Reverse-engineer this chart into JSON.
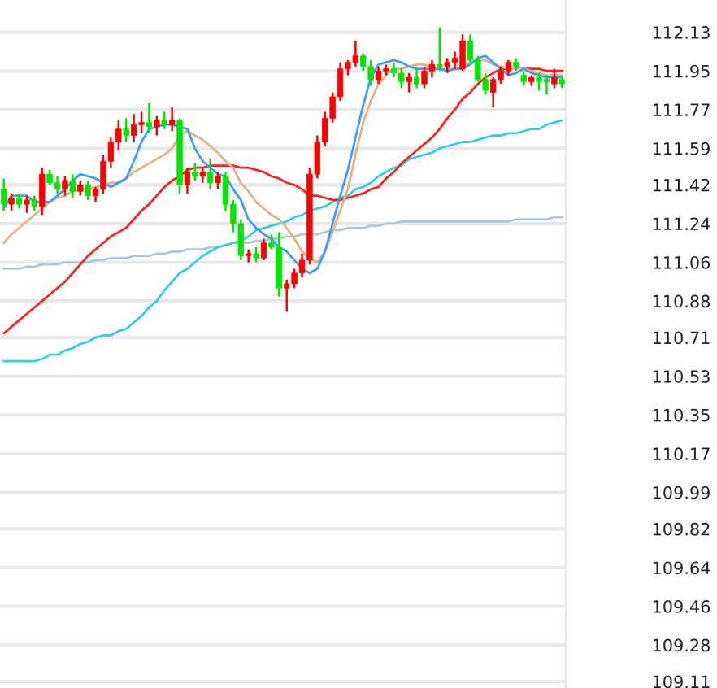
{
  "chart_data": {
    "type": "candlestick",
    "categories": [
      null,
      null,
      null,
      null,
      null,
      null,
      null,
      null,
      null,
      null,
      null,
      null,
      null,
      null,
      null,
      null,
      null,
      null,
      null,
      null,
      null,
      null,
      null,
      null,
      null,
      null,
      null,
      null,
      null,
      null,
      null,
      null,
      null,
      null,
      null,
      null,
      null,
      null,
      null,
      null,
      null,
      null,
      null,
      null,
      null,
      null,
      null,
      null,
      null,
      null,
      null,
      null,
      null,
      null,
      null,
      null,
      null,
      null,
      null,
      null,
      null,
      null,
      null,
      null,
      null,
      null,
      null,
      null,
      null,
      null,
      null,
      null,
      null,
      null
    ],
    "ohlc": [
      [
        111.4,
        111.45,
        111.3,
        111.33
      ],
      [
        111.33,
        111.38,
        111.3,
        111.36
      ],
      [
        111.36,
        111.38,
        111.31,
        111.33
      ],
      [
        111.33,
        111.37,
        111.29,
        111.35
      ],
      [
        111.35,
        111.37,
        111.3,
        111.32
      ],
      [
        111.32,
        111.5,
        111.28,
        111.47
      ],
      [
        111.47,
        111.49,
        111.42,
        111.43
      ],
      [
        111.43,
        111.46,
        111.38,
        111.4
      ],
      [
        111.4,
        111.46,
        111.37,
        111.44
      ],
      [
        111.44,
        111.47,
        111.36,
        111.39
      ],
      [
        111.39,
        111.44,
        111.37,
        111.42
      ],
      [
        111.42,
        111.44,
        111.35,
        111.37
      ],
      [
        111.37,
        111.41,
        111.34,
        111.4
      ],
      [
        111.4,
        111.56,
        111.38,
        111.53
      ],
      [
        111.53,
        111.64,
        111.5,
        111.62
      ],
      [
        111.62,
        111.72,
        111.58,
        111.68
      ],
      [
        111.68,
        111.73,
        111.62,
        111.65
      ],
      [
        111.65,
        111.75,
        111.62,
        111.7
      ],
      [
        111.7,
        111.76,
        111.66,
        111.71
      ],
      [
        111.71,
        111.8,
        111.66,
        111.69
      ],
      [
        111.69,
        111.74,
        111.65,
        111.72
      ],
      [
        111.72,
        111.76,
        111.68,
        111.7
      ],
      [
        111.7,
        111.78,
        111.67,
        111.72
      ],
      [
        111.72,
        111.73,
        111.38,
        111.42
      ],
      [
        111.42,
        111.5,
        111.38,
        111.48
      ],
      [
        111.48,
        111.52,
        111.44,
        111.46
      ],
      [
        111.46,
        111.5,
        111.43,
        111.48
      ],
      [
        111.48,
        111.54,
        111.4,
        111.43
      ],
      [
        111.43,
        111.48,
        111.4,
        111.46
      ],
      [
        111.46,
        111.48,
        111.3,
        111.33
      ],
      [
        111.33,
        111.35,
        111.2,
        111.24
      ],
      [
        111.24,
        111.26,
        111.07,
        111.09
      ],
      [
        111.09,
        111.12,
        111.06,
        111.1
      ],
      [
        111.1,
        111.13,
        111.06,
        111.08
      ],
      [
        111.08,
        111.17,
        111.07,
        111.15
      ],
      [
        111.15,
        111.19,
        111.12,
        111.13
      ],
      [
        111.13,
        111.2,
        110.9,
        110.94
      ],
      [
        110.94,
        110.98,
        110.83,
        110.96
      ],
      [
        110.96,
        111.03,
        110.94,
        111.01
      ],
      [
        111.01,
        111.1,
        110.99,
        111.07
      ],
      [
        111.07,
        111.5,
        111.05,
        111.47
      ],
      [
        111.47,
        111.65,
        111.45,
        111.62
      ],
      [
        111.62,
        111.76,
        111.6,
        111.73
      ],
      [
        111.73,
        111.85,
        111.71,
        111.83
      ],
      [
        111.83,
        111.99,
        111.81,
        111.96
      ],
      [
        111.96,
        112.0,
        111.93,
        111.99
      ],
      [
        111.99,
        112.09,
        111.97,
        112.02
      ],
      [
        112.02,
        112.03,
        111.95,
        111.97
      ],
      [
        111.97,
        112.0,
        111.88,
        111.91
      ],
      [
        111.91,
        111.97,
        111.89,
        111.95
      ],
      [
        111.95,
        111.98,
        111.93,
        111.96
      ],
      [
        111.96,
        111.99,
        111.92,
        111.94
      ],
      [
        111.94,
        111.96,
        111.87,
        111.9
      ],
      [
        111.9,
        111.94,
        111.85,
        111.92
      ],
      [
        111.92,
        111.96,
        111.87,
        111.89
      ],
      [
        111.89,
        111.97,
        111.87,
        111.95
      ],
      [
        111.95,
        112.0,
        111.92,
        111.98
      ],
      [
        111.98,
        112.15,
        111.95,
        111.97
      ],
      [
        111.97,
        112.01,
        111.94,
        111.99
      ],
      [
        111.99,
        112.04,
        111.96,
        112.01
      ],
      [
        111.96,
        112.12,
        111.95,
        112.09
      ],
      [
        112.09,
        112.12,
        111.99,
        112.0
      ],
      [
        112.0,
        112.02,
        111.9,
        111.91
      ],
      [
        111.91,
        111.94,
        111.84,
        111.86
      ],
      [
        111.85,
        111.92,
        111.78,
        111.91
      ],
      [
        111.91,
        111.97,
        111.89,
        111.95
      ],
      [
        111.95,
        112.0,
        111.93,
        111.99
      ],
      [
        111.99,
        112.01,
        111.95,
        111.97
      ],
      [
        111.93,
        111.95,
        111.88,
        111.9
      ],
      [
        111.9,
        111.93,
        111.88,
        111.92
      ],
      [
        111.92,
        111.94,
        111.86,
        111.9
      ],
      [
        111.91,
        111.93,
        111.84,
        111.9
      ],
      [
        111.89,
        111.96,
        111.87,
        111.92
      ],
      [
        111.91,
        111.92,
        111.87,
        111.89
      ]
    ],
    "colors": [
      "#00e600",
      "#ff0000",
      "#00e600",
      "#ff0000",
      "#00e600",
      "#ff0000",
      "#00e600",
      "#00e600",
      "#ff0000",
      "#00e600",
      "#ff0000",
      "#00e600",
      "#ff0000",
      "#ff0000",
      "#ff0000",
      "#ff0000",
      "#00e600",
      "#ff0000",
      "#ff0000",
      "#00e600",
      "#ff0000",
      "#00e600",
      "#ff0000",
      "#00e600",
      "#ff0000",
      "#00e600",
      "#ff0000",
      "#00e600",
      "#ff0000",
      "#00e600",
      "#00e600",
      "#00e600",
      "#ff0000",
      "#00e600",
      "#ff0000",
      "#00e600",
      "#00e600",
      "#ff0000",
      "#ff0000",
      "#ff0000",
      "#ff0000",
      "#ff0000",
      "#ff0000",
      "#ff0000",
      "#ff0000",
      "#ff0000",
      "#ff0000",
      "#00e600",
      "#00e600",
      "#ff0000",
      "#ff0000",
      "#00e600",
      "#00e600",
      "#ff0000",
      "#00e600",
      "#ff0000",
      "#ff0000",
      "#00e600",
      "#ff0000",
      "#ff0000",
      "#ff0000",
      "#00e600",
      "#00e600",
      "#00e600",
      "#ff0000",
      "#ff0000",
      "#ff0000",
      "#00e600",
      "#00e600",
      "#ff0000",
      "#00e600",
      "#00e600",
      "#ff0000",
      "#00e600"
    ],
    "series": [
      {
        "type": "line",
        "color": "#a8c8e0",
        "values": [
          111.03,
          111.03,
          111.03,
          111.04,
          111.04,
          111.05,
          111.05,
          111.05,
          111.06,
          111.06,
          111.06,
          111.06,
          111.07,
          111.07,
          111.08,
          111.08,
          111.08,
          111.09,
          111.09,
          111.09,
          111.1,
          111.1,
          111.11,
          111.11,
          111.12,
          111.12,
          111.12,
          111.13,
          111.13,
          111.14,
          111.15,
          111.15,
          111.15,
          111.16,
          111.16,
          111.17,
          111.17,
          111.18,
          111.18,
          111.19,
          111.19,
          111.19,
          111.2,
          111.21,
          111.21,
          111.22,
          111.22,
          111.22,
          111.23,
          111.23,
          111.24,
          111.24,
          111.25,
          111.25,
          111.25,
          111.25,
          111.25,
          111.25,
          111.25,
          111.25,
          111.25,
          111.25,
          111.25,
          111.25,
          111.25,
          111.25,
          111.25,
          111.26,
          111.26,
          111.26,
          111.26,
          111.26,
          111.27,
          111.27
        ]
      },
      {
        "type": "line",
        "color": "#30d0e0",
        "values": [
          110.6,
          110.6,
          110.6,
          110.6,
          110.6,
          110.61,
          110.63,
          110.63,
          110.65,
          110.66,
          110.68,
          110.69,
          110.71,
          110.72,
          110.72,
          110.74,
          110.75,
          110.78,
          110.81,
          110.85,
          110.88,
          110.93,
          110.97,
          111.01,
          111.03,
          111.06,
          111.09,
          111.11,
          111.13,
          111.14,
          111.15,
          111.16,
          111.18,
          111.21,
          111.22,
          111.23,
          111.24,
          111.25,
          111.27,
          111.28,
          111.3,
          111.31,
          111.32,
          111.34,
          111.36,
          111.37,
          111.4,
          111.41,
          111.43,
          111.46,
          111.48,
          111.5,
          111.51,
          111.54,
          111.55,
          111.56,
          111.57,
          111.59,
          111.6,
          111.61,
          111.62,
          111.62,
          111.63,
          111.64,
          111.65,
          111.65,
          111.66,
          111.66,
          111.67,
          111.68,
          111.68,
          111.7,
          111.71,
          111.72
        ]
      },
      {
        "type": "line",
        "color": "#ff2020",
        "values": [
          110.73,
          110.76,
          110.79,
          110.82,
          110.85,
          110.88,
          110.91,
          110.94,
          110.97,
          111.01,
          111.05,
          111.09,
          111.12,
          111.15,
          111.18,
          111.2,
          111.22,
          111.26,
          111.3,
          111.33,
          111.37,
          111.41,
          111.44,
          111.46,
          111.49,
          111.5,
          111.5,
          111.51,
          111.51,
          111.51,
          111.51,
          111.5,
          111.5,
          111.49,
          111.48,
          111.46,
          111.45,
          111.43,
          111.42,
          111.4,
          111.37,
          111.37,
          111.36,
          111.35,
          111.35,
          111.36,
          111.37,
          111.38,
          111.4,
          111.41,
          111.45,
          111.48,
          111.52,
          111.55,
          111.58,
          111.61,
          111.64,
          111.68,
          111.73,
          111.77,
          111.82,
          111.85,
          111.89,
          111.92,
          111.94,
          111.96,
          111.96,
          111.96,
          111.96,
          111.96,
          111.96,
          111.95,
          111.95,
          111.95
        ]
      },
      {
        "type": "line",
        "color": "#e8b080",
        "values": [
          111.15,
          111.19,
          111.22,
          111.25,
          111.28,
          111.31,
          111.34,
          111.36,
          111.37,
          111.39,
          111.4,
          111.4,
          111.41,
          111.42,
          111.43,
          111.43,
          111.45,
          111.48,
          111.5,
          111.52,
          111.54,
          111.56,
          111.59,
          111.65,
          111.67,
          111.65,
          111.63,
          111.6,
          111.57,
          111.53,
          111.5,
          111.43,
          111.39,
          111.34,
          111.31,
          111.28,
          111.26,
          111.22,
          111.17,
          111.11,
          111.08,
          111.06,
          111.11,
          111.2,
          111.3,
          111.4,
          111.56,
          111.71,
          111.81,
          111.89,
          111.93,
          111.96,
          111.96,
          111.97,
          111.98,
          111.98,
          111.97,
          111.96,
          111.96,
          111.96,
          111.97,
          111.99,
          112.0,
          112.0,
          111.98,
          111.97,
          111.96,
          111.96,
          111.96,
          111.95,
          111.94,
          111.93,
          111.93,
          111.93
        ]
      },
      {
        "type": "line",
        "color": "#3c9cff",
        "values": [
          111.31,
          111.37,
          111.37,
          111.37,
          111.34,
          111.34,
          111.34,
          111.37,
          111.4,
          111.44,
          111.47,
          111.46,
          111.45,
          111.43,
          111.41,
          111.43,
          111.45,
          111.53,
          111.62,
          111.68,
          111.69,
          111.7,
          111.7,
          111.69,
          111.68,
          111.59,
          111.53,
          111.5,
          111.47,
          111.46,
          111.4,
          111.35,
          111.26,
          111.22,
          111.19,
          111.17,
          111.13,
          111.11,
          111.07,
          111.03,
          111.01,
          111.03,
          111.11,
          111.24,
          111.37,
          111.49,
          111.64,
          111.79,
          111.92,
          111.98,
          111.99,
          112.0,
          111.99,
          111.97,
          111.96,
          111.96,
          111.96,
          111.96,
          111.95,
          111.96,
          111.96,
          111.98,
          112.01,
          112.02,
          111.99,
          111.96,
          111.93,
          111.94,
          111.96,
          111.94,
          111.93,
          111.92,
          111.92,
          111.92
        ]
      }
    ],
    "ylim": [
      109.08,
      112.28
    ],
    "yticks": [
      112.13,
      111.95,
      111.77,
      111.59,
      111.42,
      111.24,
      111.06,
      110.88,
      110.71,
      110.53,
      110.35,
      110.17,
      109.99,
      109.82,
      109.64,
      109.46,
      109.28,
      109.11
    ],
    "grid": "y",
    "tick_labels": "y",
    "line_style": "solid",
    "marker": "none"
  }
}
